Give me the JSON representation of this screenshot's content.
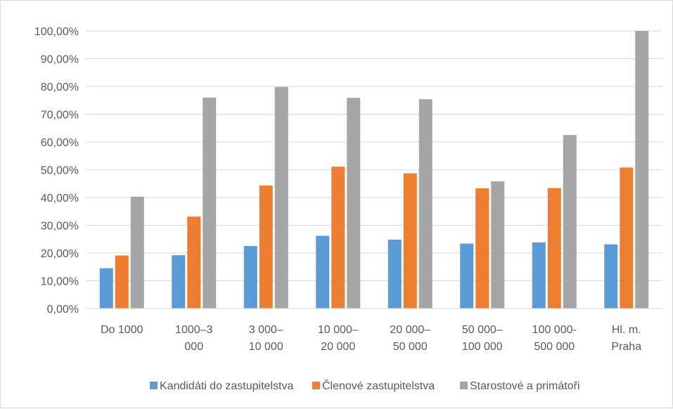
{
  "chart_data": {
    "type": "bar",
    "title": "",
    "xlabel": "",
    "ylabel": "",
    "ylim": [
      0,
      100
    ],
    "y_ticks": [
      "0,00%",
      "10,00%",
      "20,00%",
      "30,00%",
      "40,00%",
      "50,00%",
      "60,00%",
      "70,00%",
      "80,00%",
      "90,00%",
      "100,00%"
    ],
    "grid": true,
    "legend_position": "bottom",
    "categories": [
      [
        "Do 1000"
      ],
      [
        "1000–3",
        "000"
      ],
      [
        "3 000–",
        "10 000"
      ],
      [
        "10 000–",
        "20 000"
      ],
      [
        "20 000–",
        "50 000"
      ],
      [
        "50 000–",
        "100 000"
      ],
      [
        "100 000-",
        "500 000"
      ],
      [
        "Hl. m.",
        "Praha"
      ]
    ],
    "series": [
      {
        "name": "Kandidáti do zastupitelstva",
        "color": "#5b9bd5",
        "values": [
          14.5,
          19.2,
          22.5,
          26.2,
          24.8,
          23.4,
          23.8,
          23.1
        ]
      },
      {
        "name": "Členové zastupitelstva",
        "color": "#ed7d31",
        "values": [
          19.1,
          33.1,
          44.3,
          51.1,
          48.7,
          43.3,
          43.4,
          50.8
        ]
      },
      {
        "name": "Starostové a primátoři",
        "color": "#a5a5a5",
        "values": [
          40.3,
          76.0,
          79.8,
          75.9,
          75.4,
          45.8,
          62.5,
          100.0
        ]
      }
    ]
  }
}
